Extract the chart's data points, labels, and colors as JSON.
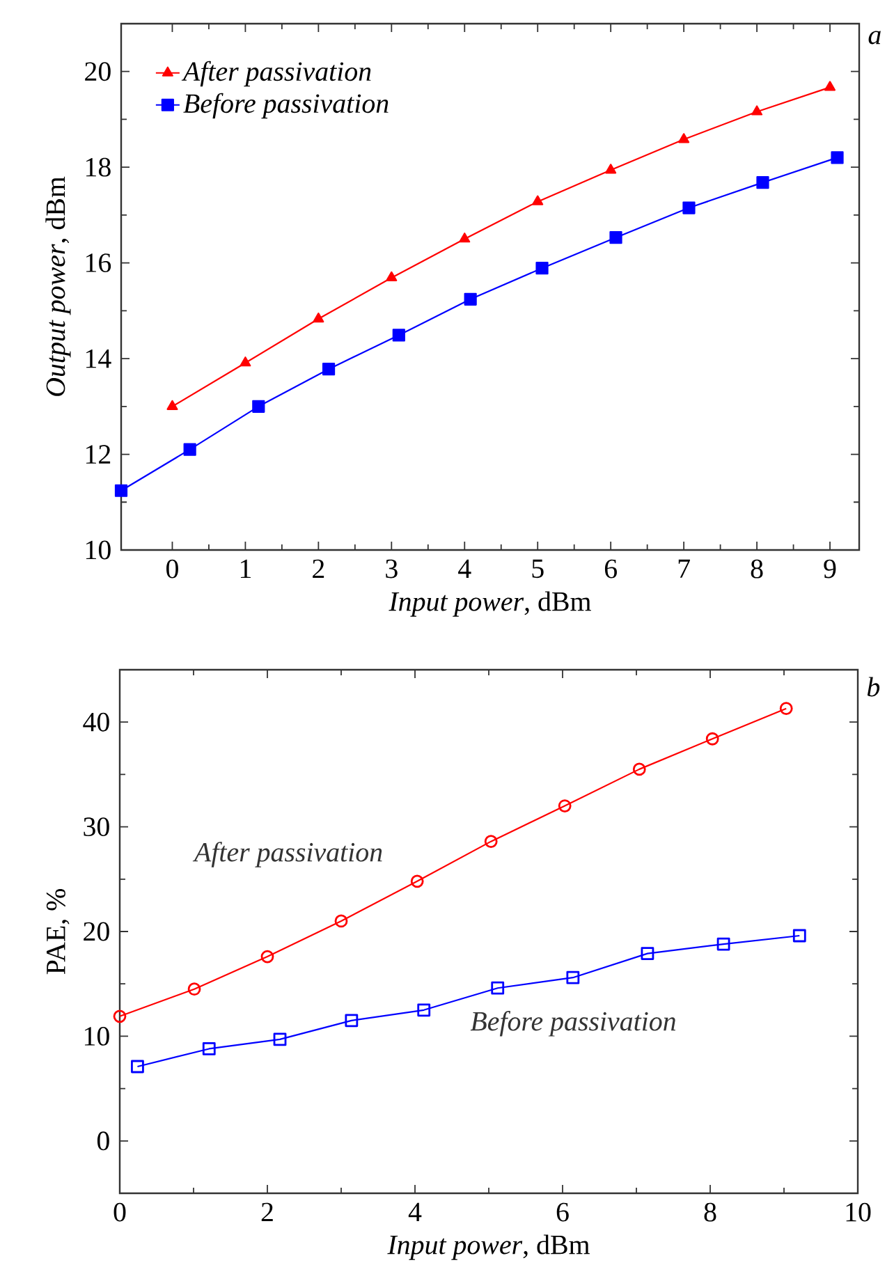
{
  "chart_data": [
    {
      "type": "line",
      "xlabel": "*Input power*, dBm",
      "ylabel": "*Output power*, dBm",
      "annotations": [
        "a"
      ],
      "xlim": [
        -0.7,
        9.4
      ],
      "ylim": [
        10,
        21
      ],
      "xticks": [
        0,
        1,
        2,
        3,
        4,
        5,
        6,
        7,
        8,
        9
      ],
      "yticks": [
        10,
        12,
        14,
        16,
        18,
        20
      ],
      "legend": "top left",
      "series": [
        {
          "name": "After passivation",
          "color": "#ff0000",
          "marker": "triangle",
          "x": [
            0,
            1,
            2,
            3,
            4,
            5,
            6,
            7,
            8,
            9
          ],
          "values": [
            13.0,
            13.91,
            14.83,
            15.69,
            16.5,
            17.28,
            17.94,
            18.58,
            19.16,
            19.67
          ]
        },
        {
          "name": "Before passivation",
          "color": "#0000ff",
          "marker": "square",
          "x": [
            -0.7,
            0.24,
            1.18,
            2.14,
            3.1,
            4.08,
            5.06,
            6.07,
            7.07,
            8.08,
            9.1
          ],
          "values": [
            11.24,
            12.1,
            13.0,
            13.78,
            14.49,
            15.24,
            15.89,
            16.53,
            17.15,
            17.68,
            18.2
          ]
        }
      ]
    },
    {
      "type": "line",
      "xlabel": "*Input power*, dBm",
      "ylabel": "PAE, %",
      "annotations": [
        "b"
      ],
      "xlim": [
        0,
        10
      ],
      "ylim": [
        -5,
        45
      ],
      "xticks": [
        0,
        2,
        4,
        6,
        8,
        10
      ],
      "yticks": [
        0,
        10,
        20,
        30,
        40
      ],
      "series": [
        {
          "name": "After passivation",
          "color": "#ff0000",
          "marker": "circle",
          "x": [
            0,
            1.01,
            2.0,
            3.0,
            4.03,
            5.03,
            6.03,
            7.04,
            8.03,
            9.03
          ],
          "values": [
            11.9,
            14.5,
            17.6,
            21.0,
            24.8,
            28.6,
            32.0,
            35.5,
            38.4,
            41.3
          ]
        },
        {
          "name": "Before passivation",
          "color": "#0000ff",
          "marker": "square",
          "x": [
            0.24,
            1.21,
            2.17,
            3.14,
            4.12,
            5.12,
            6.14,
            7.15,
            8.18,
            9.21
          ],
          "values": [
            7.1,
            8.8,
            9.7,
            11.5,
            12.5,
            14.6,
            15.6,
            17.9,
            18.8,
            19.6
          ]
        }
      ]
    }
  ]
}
